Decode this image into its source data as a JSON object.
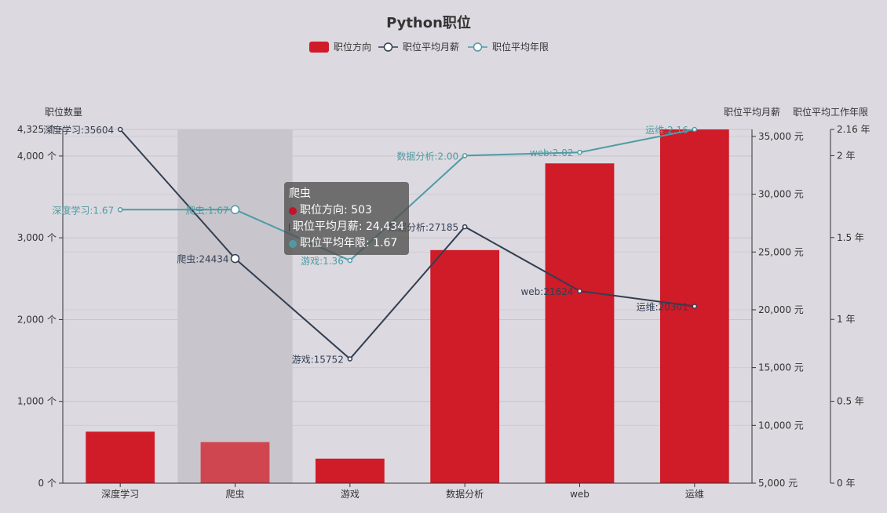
{
  "chart_data": {
    "type": "bar",
    "title": "Python职位",
    "categories": [
      "深度学习",
      "爬虫",
      "游戏",
      "数据分析",
      "web",
      "运维"
    ],
    "series": [
      {
        "name": "职位方向",
        "type": "bar",
        "axis": "left",
        "values": [
          630,
          503,
          300,
          2850,
          3910,
          4325
        ],
        "color": "#d01b28"
      },
      {
        "name": "职位平均月薪",
        "type": "line",
        "axis": "right1",
        "values": [
          35604,
          24434,
          15752,
          27185,
          21624,
          20301
        ],
        "color": "#333e52"
      },
      {
        "name": "职位平均年限",
        "type": "line",
        "axis": "right2",
        "values": [
          1.67,
          1.67,
          1.36,
          2.0,
          2.02,
          2.16
        ],
        "color": "#4f9ba4"
      }
    ],
    "axes": {
      "left": {
        "name": "职位数量",
        "min": 0,
        "max": 4325,
        "ticks": [
          "0 个",
          "1,000 个",
          "2,000 个",
          "3,000 个",
          "4,000 个",
          "4,325 个"
        ],
        "tick_values": [
          0,
          1000,
          2000,
          3000,
          4000,
          4325
        ]
      },
      "right1": {
        "name": "职位平均月薪",
        "min": 5000,
        "max": 35604,
        "ticks": [
          "5,000 元",
          "10,000 元",
          "15,000 元",
          "20,000 元",
          "25,000 元",
          "30,000 元",
          "35,000 元"
        ],
        "tick_values": [
          5000,
          10000,
          15000,
          20000,
          25000,
          30000,
          35000
        ]
      },
      "right2": {
        "name": "职位平均工作年限",
        "min": 0,
        "max": 2.16,
        "ticks": [
          "0 年",
          "0.5 年",
          "1 年",
          "1.5 年",
          "2 年",
          "2.16 年"
        ],
        "tick_values": [
          0,
          0.5,
          1,
          1.5,
          2,
          2.16
        ]
      }
    },
    "salary_labels": [
      "深度学习:35604",
      "爬虫:24434",
      "游戏:15752",
      "数据分析:27185",
      "web:21624",
      "运维:20301"
    ],
    "year_labels": [
      "深度学习:1.67",
      "爬虫:1.67",
      "游戏:1.36",
      "数据分析:2.00",
      "web:2.02",
      "运维:2.16"
    ],
    "highlight_category": "爬虫",
    "legend_position": "top-center"
  },
  "tooltip": {
    "title": "爬虫",
    "rows": [
      {
        "text": "职位方向: 503",
        "color": "#c2132a"
      },
      {
        "text": "职位平均月薪: 24,434",
        "color": "#333e52"
      },
      {
        "text": "职位平均年限: 1.67",
        "color": "#4f9ba4"
      }
    ]
  }
}
